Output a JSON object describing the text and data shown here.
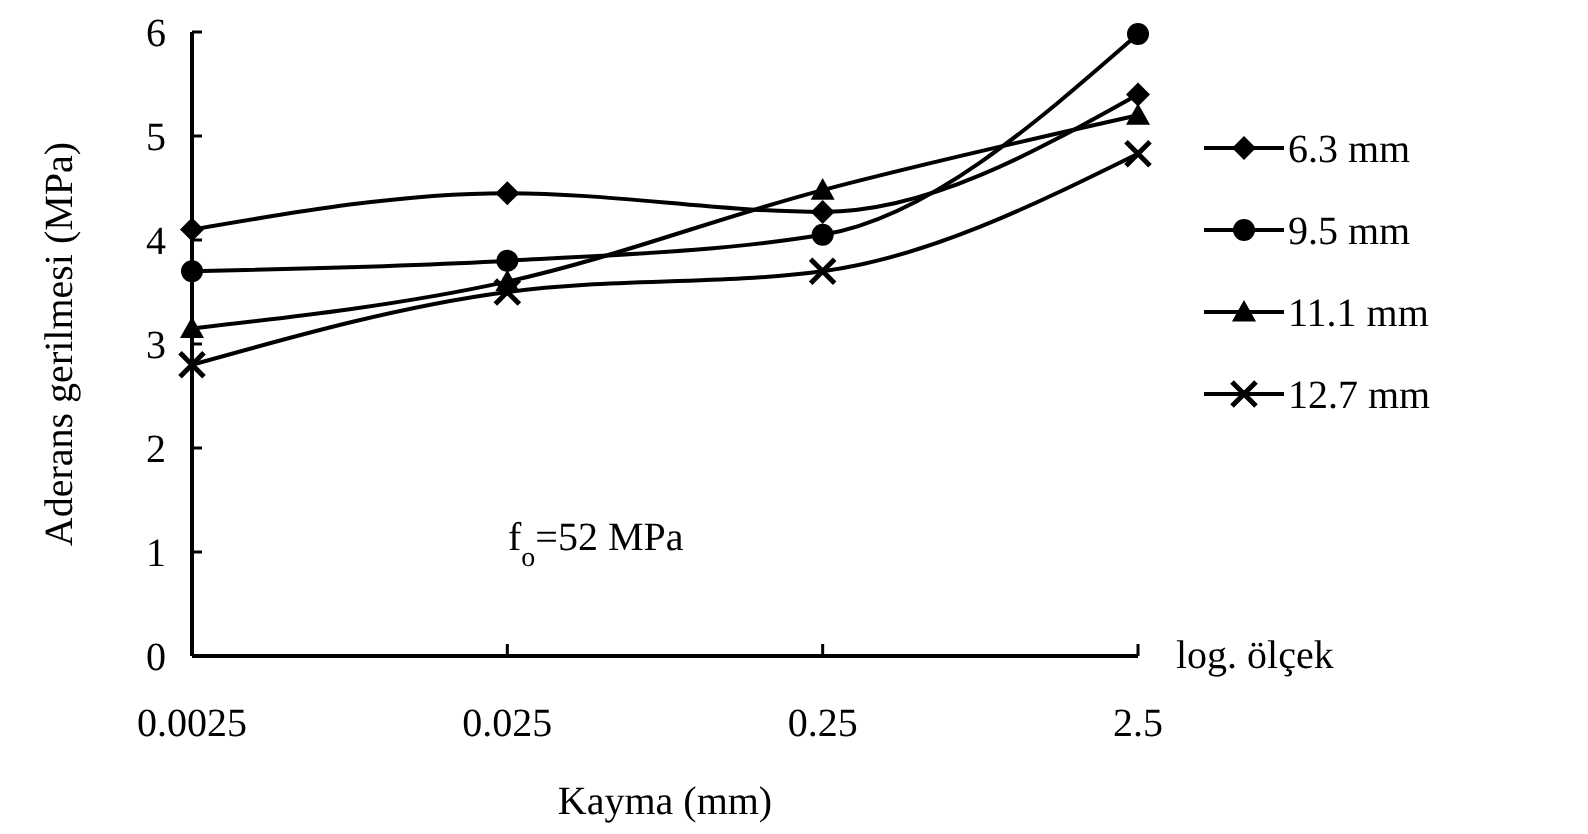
{
  "chart_data": {
    "type": "line",
    "xlabel": "Kayma (mm)",
    "ylabel": "Aderans gerilmesi (MPa)",
    "x": [
      0.0025,
      0.025,
      0.25,
      2.5
    ],
    "log": "x",
    "xlim": [
      0.0025,
      2.5
    ],
    "xticks": [
      0.0025,
      0.025,
      0.25,
      2.5
    ],
    "ylim": [
      0,
      6
    ],
    "yticks": [
      0,
      1,
      2,
      3,
      4,
      5,
      6
    ],
    "grid": false,
    "legend": "right",
    "series": [
      {
        "name": "6.3 mm",
        "color": "#000000",
        "marker": "diamond",
        "values": [
          4.1,
          4.45,
          4.27,
          5.4
        ]
      },
      {
        "name": "9.5 mm",
        "color": "#000000",
        "marker": "circle",
        "values": [
          3.7,
          3.8,
          4.05,
          5.98
        ]
      },
      {
        "name": "11.1 mm",
        "color": "#000000",
        "marker": "triangle",
        "values": [
          3.15,
          3.6,
          4.48,
          5.2
        ]
      },
      {
        "name": "12.7 mm",
        "color": "#000000",
        "marker": "cross",
        "values": [
          2.8,
          3.5,
          3.7,
          4.83
        ]
      }
    ],
    "annotations": [
      "f$_{o}$=52 MPa",
      "log. ölçek"
    ]
  }
}
